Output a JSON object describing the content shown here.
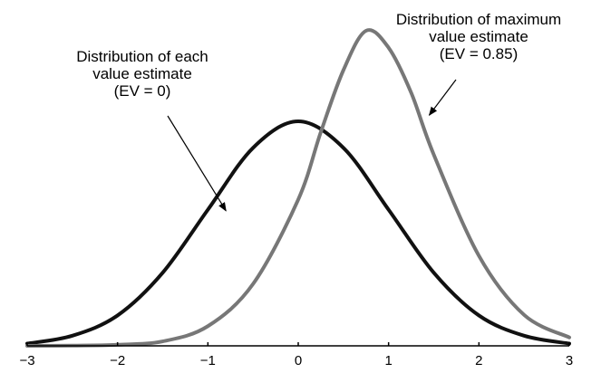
{
  "chart_data": {
    "type": "line",
    "title": "",
    "xlabel": "",
    "ylabel": "",
    "xlim": [
      -3,
      3
    ],
    "xticks": [
      -3,
      -2,
      -1,
      0,
      1,
      2,
      3
    ],
    "xtick_labels": [
      "−3",
      "−2",
      "−1",
      "0",
      "1",
      "2",
      "3"
    ],
    "grid": false,
    "legend": "none",
    "series": [
      {
        "color": "#111111",
        "x": [
          -3,
          -2.5,
          -2,
          -1.5,
          -1,
          -0.5,
          0,
          0.5,
          1,
          1.5,
          2,
          2.5,
          3
        ],
        "y": [
          0.004,
          0.018,
          0.054,
          0.13,
          0.242,
          0.352,
          0.399,
          0.352,
          0.242,
          0.13,
          0.054,
          0.018,
          0.004
        ]
      },
      {
        "color": "#777777",
        "x": [
          -3,
          -2.5,
          -2,
          -1.5,
          -1,
          -0.5,
          0,
          0.25,
          0.5,
          0.75,
          1,
          1.25,
          1.5,
          2,
          2.5,
          3
        ],
        "y": [
          0,
          0.0005,
          0.002,
          0.008,
          0.035,
          0.11,
          0.26,
          0.38,
          0.49,
          0.56,
          0.53,
          0.45,
          0.34,
          0.16,
          0.055,
          0.015
        ]
      }
    ],
    "annotations": [
      {
        "lines": [
          "Distribution of each",
          "value estimate",
          "(EV = 0)"
        ],
        "arrow_to": [
          -0.8,
          0.24
        ]
      },
      {
        "lines": [
          "Distribution of maximum",
          "value estimate",
          "(EV = 0.85)"
        ],
        "arrow_to": [
          1.45,
          0.41
        ]
      }
    ]
  }
}
